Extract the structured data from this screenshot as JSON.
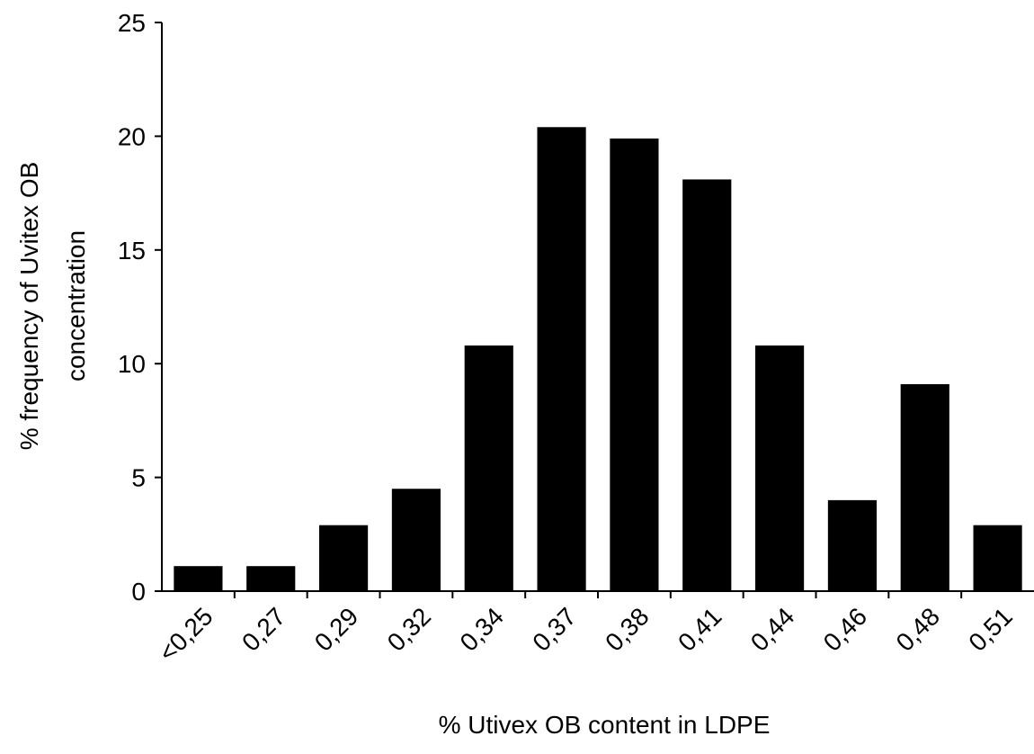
{
  "chart_data": {
    "type": "bar",
    "categories": [
      "<0,25",
      "0,27",
      "0,29",
      "0,32",
      "0,34",
      "0,37",
      "0,38",
      "0,41",
      "0,44",
      "0,46",
      "0,48",
      "0,51"
    ],
    "values": [
      1.1,
      1.1,
      2.9,
      4.5,
      10.8,
      20.4,
      19.9,
      18.1,
      10.8,
      4.0,
      9.1,
      2.9
    ],
    "color": "#000000",
    "ylim": [
      0,
      25
    ],
    "yticks": [
      0,
      5,
      10,
      15,
      20,
      25
    ],
    "xlabel": "% Utivex OB content in LDPE",
    "ylabel": [
      "% frequency of Uvitex OB",
      "concentration"
    ],
    "grid": false
  }
}
